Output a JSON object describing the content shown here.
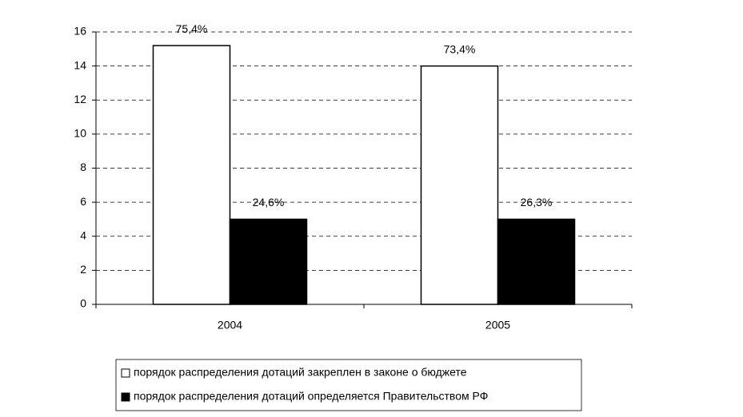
{
  "chart_data": {
    "type": "bar",
    "categories": [
      "2004",
      "2005"
    ],
    "series": [
      {
        "name": "порядок распределения дотаций закреплен в законе о бюджете",
        "color": "#ffffff",
        "values": [
          15.2,
          14.0
        ],
        "share_labels": [
          "75,4%",
          "73,4%"
        ]
      },
      {
        "name": "порядок распределения дотаций определяется Правительством РФ",
        "color": "#000000",
        "values": [
          5.0,
          5.0
        ],
        "share_labels": [
          "24,6%",
          "26,3%"
        ]
      }
    ],
    "ylim": [
      0,
      16
    ],
    "yticks": [
      0,
      2,
      4,
      6,
      8,
      10,
      12,
      14,
      16
    ],
    "grid": true,
    "legend": "bottom"
  }
}
